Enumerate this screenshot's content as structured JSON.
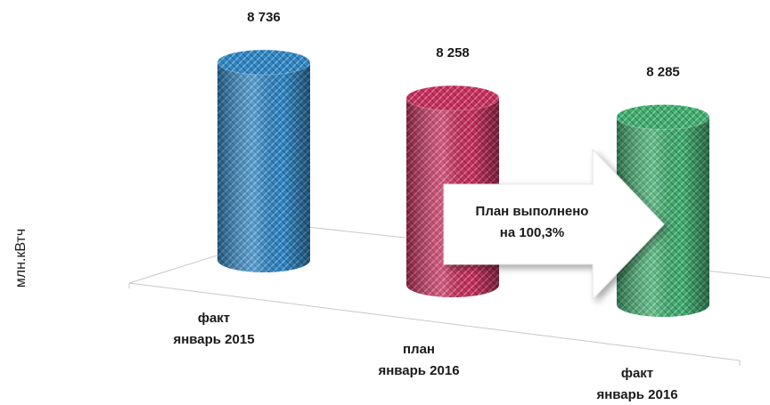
{
  "chart_data": {
    "type": "bar3d",
    "categories": [
      [
        "факт",
        "январь 2015"
      ],
      [
        "план",
        "январь 2016"
      ],
      [
        "факт",
        "январь 2016"
      ]
    ],
    "values": [
      8736,
      8258,
      8285
    ],
    "value_labels": [
      "8 736",
      "8 258",
      "8 285"
    ],
    "colors": [
      "#2f86c4",
      "#c8305e",
      "#3fae6e"
    ],
    "ylabel": "млн.кВтч",
    "annotation": [
      "План выполнено",
      "на 100,3%"
    ]
  }
}
